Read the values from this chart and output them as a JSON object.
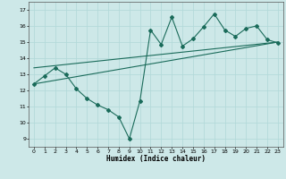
{
  "xlabel": "Humidex (Indice chaleur)",
  "ylabel": "",
  "xlim": [
    -0.5,
    23.5
  ],
  "ylim": [
    8.5,
    17.5
  ],
  "yticks": [
    9,
    10,
    11,
    12,
    13,
    14,
    15,
    16,
    17
  ],
  "xticks": [
    0,
    1,
    2,
    3,
    4,
    5,
    6,
    7,
    8,
    9,
    10,
    11,
    12,
    13,
    14,
    15,
    16,
    17,
    18,
    19,
    20,
    21,
    22,
    23
  ],
  "background_color": "#cde8e8",
  "line_color": "#1a6b5a",
  "line1": {
    "x": [
      0,
      1,
      2,
      3,
      4,
      5,
      6,
      7,
      8,
      9,
      10,
      11,
      12,
      13,
      14,
      15,
      16,
      17,
      18,
      19,
      20,
      21,
      22,
      23
    ],
    "y": [
      12.4,
      12.9,
      13.4,
      13.0,
      12.1,
      11.5,
      11.1,
      10.8,
      10.35,
      9.0,
      11.35,
      15.75,
      14.85,
      16.55,
      14.75,
      15.2,
      15.95,
      16.75,
      15.75,
      15.35,
      15.85,
      16.0,
      15.15,
      14.95
    ]
  },
  "line2": {
    "x": [
      0,
      23
    ],
    "y": [
      12.4,
      15.0
    ]
  },
  "line3": {
    "x": [
      0,
      23
    ],
    "y": [
      13.4,
      15.0
    ]
  }
}
